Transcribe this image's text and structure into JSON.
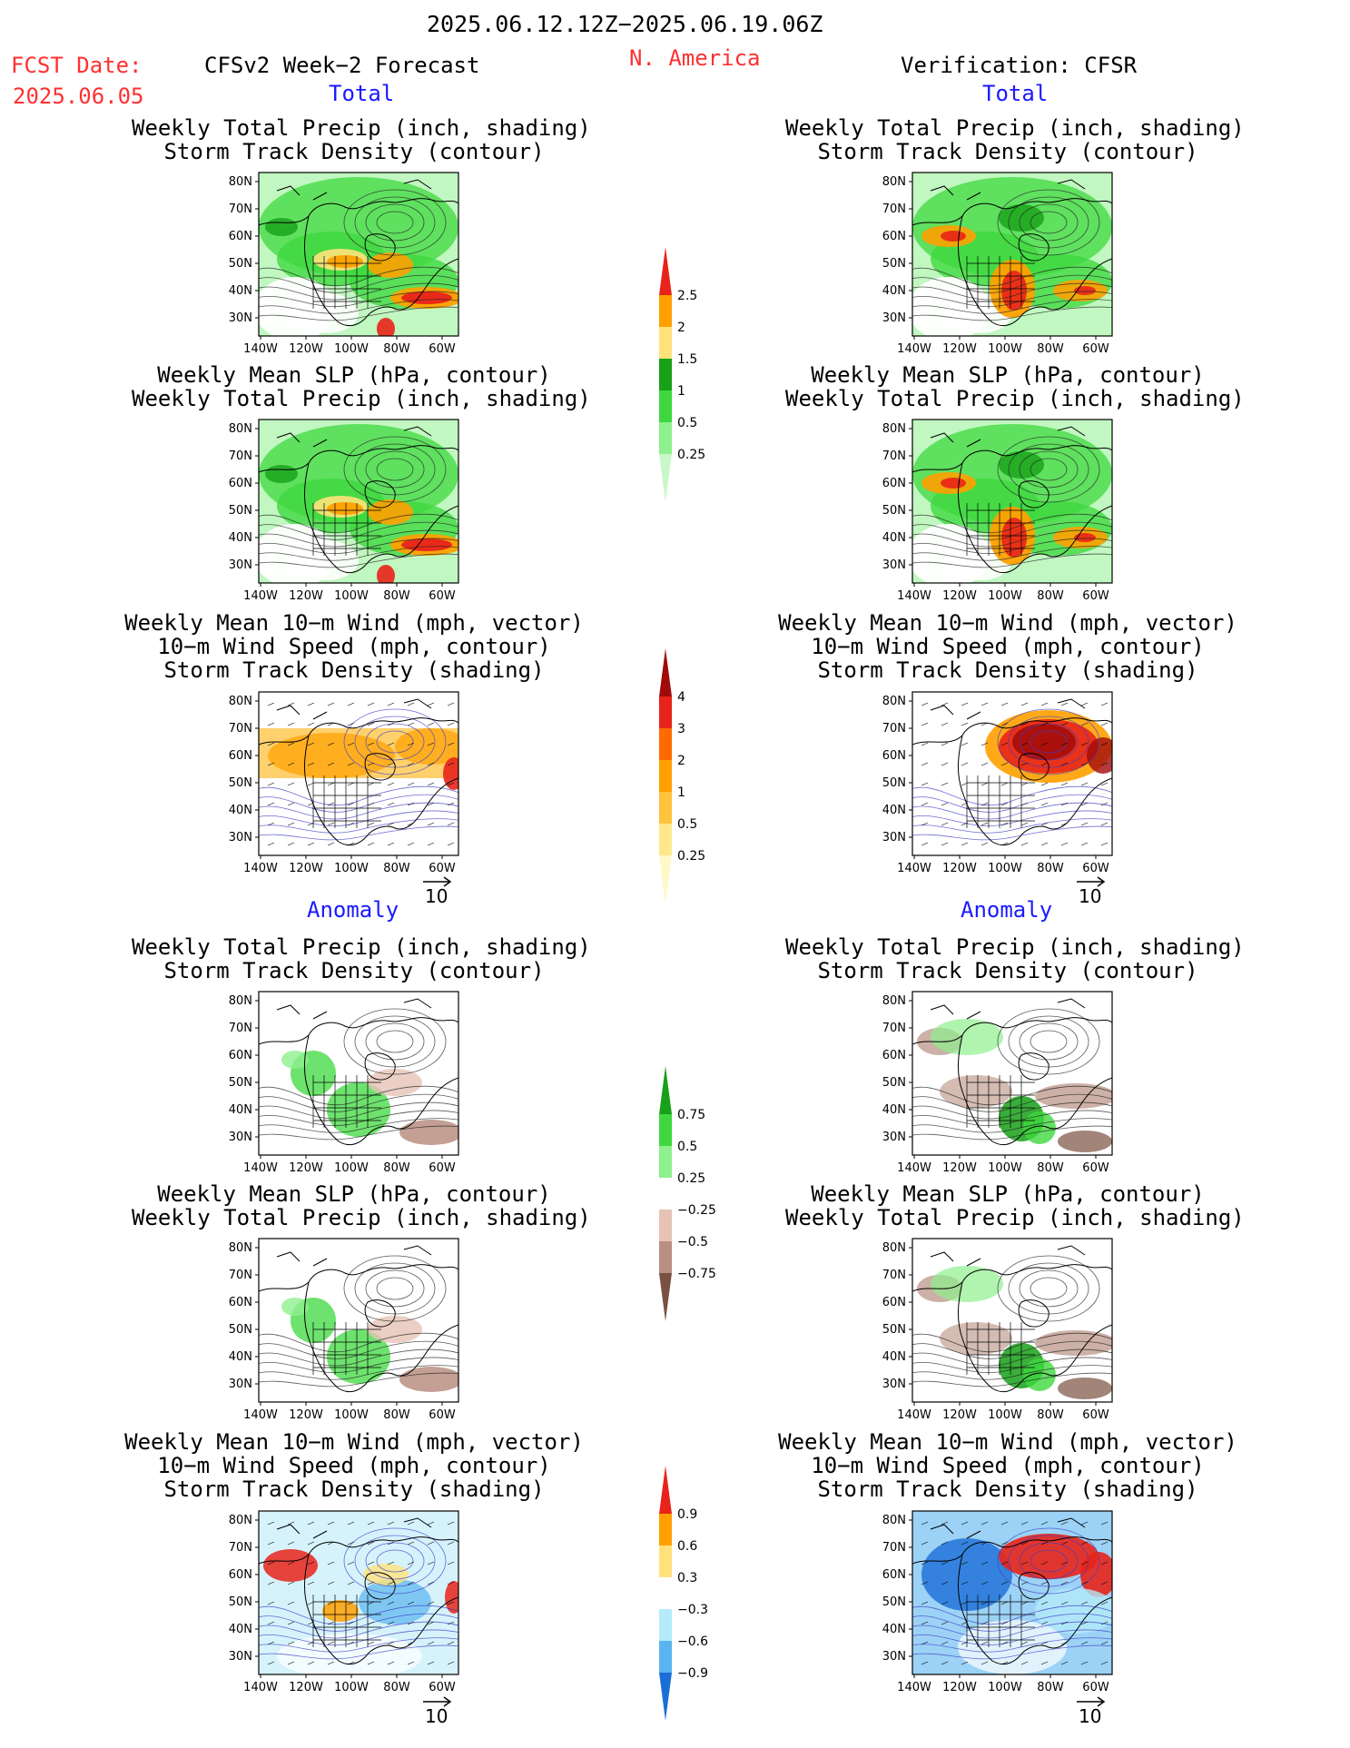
{
  "header": {
    "period": "2025.06.12.12Z−2025.06.19.06Z",
    "fcst_label": "FCST Date:",
    "fcst_date": "2025.06.05",
    "model": "CFSv2 Week−2 Forecast",
    "region": "N. America",
    "verification": "Verification: CFSR"
  },
  "sections": {
    "total_left": "Total",
    "total_right": "Total",
    "anomaly_left": "Anomaly",
    "anomaly_right": "Anomaly"
  },
  "panel_titles": {
    "precip_storm": "Weekly Total Precip (inch, shading)\nStorm Track Density (contour)",
    "slp_precip": "Weekly Mean SLP (hPa, contour)\nWeekly Total Precip (inch, shading)",
    "wind": "Weekly Mean 10−m Wind (mph, vector)\n10−m Wind Speed (mph, contour)\nStorm Track Density (shading)"
  },
  "axes": {
    "lat_labels": [
      "80N",
      "70N",
      "60N",
      "50N",
      "40N",
      "30N"
    ],
    "lon_labels": [
      "140W",
      "120W",
      "100W",
      "80W",
      "60W"
    ]
  },
  "vector_ref": "10",
  "colorbars": {
    "precip_total": {
      "labels": [
        "2.5",
        "2",
        "1.5",
        "1",
        "0.5",
        "0.25"
      ],
      "colors": [
        "#e8231a",
        "#ffa000",
        "#ffe27a",
        "#18a018",
        "#3ed83e",
        "#8ef08e",
        "#c8f8c8"
      ]
    },
    "storm_total": {
      "labels": [
        "4",
        "3",
        "2",
        "1",
        "0.5",
        "0.25"
      ],
      "colors": [
        "#a00a0a",
        "#e8231a",
        "#ff6a00",
        "#ffa000",
        "#ffc23c",
        "#ffe88c",
        "#fff8c8"
      ]
    },
    "precip_anom": {
      "labels": [
        "0.75",
        "0.5",
        "0.25",
        "−0.25",
        "−0.5",
        "−0.75"
      ],
      "colors": [
        "#18a018",
        "#3ed83e",
        "#8ef08e",
        "#ffffff",
        "#e6c3b6",
        "#b88f80",
        "#7a5040"
      ]
    },
    "storm_anom": {
      "labels": [
        "0.9",
        "0.6",
        "0.3",
        "−0.3",
        "−0.6",
        "−0.9"
      ],
      "colors": [
        "#e8231a",
        "#ffa000",
        "#ffe27a",
        "#ffffff",
        "#b4eafa",
        "#5ab4f0",
        "#1a6ed8"
      ]
    }
  },
  "colors": {
    "title_red": "#ff3030",
    "section_blue": "#1a1aff"
  }
}
